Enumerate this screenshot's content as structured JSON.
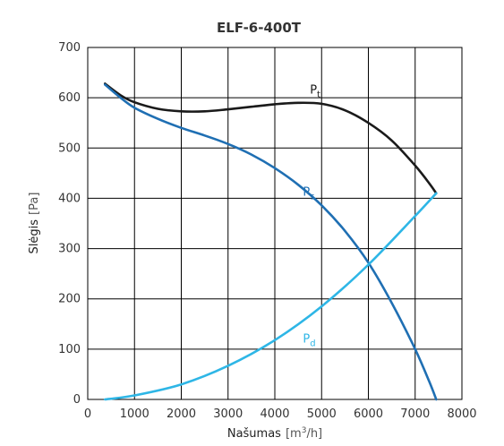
{
  "chart_data": {
    "type": "line",
    "title": "ELF-6-400T",
    "xlabel": "Našumas",
    "xlabel_unit_prefix": "[m",
    "xlabel_unit_sup": "3",
    "xlabel_unit_suffix": "/h]",
    "ylabel": "Slėgis",
    "ylabel_unit": "[Pa]",
    "xlim": [
      0,
      8000
    ],
    "ylim": [
      0,
      700
    ],
    "x_ticks": [
      0,
      1000,
      2000,
      3000,
      4000,
      5000,
      6000,
      7000,
      8000
    ],
    "y_ticks": [
      0,
      100,
      200,
      300,
      400,
      500,
      600,
      700
    ],
    "grid": true,
    "series": [
      {
        "id": "pt",
        "name": "P",
        "sub": "t",
        "color": "#1a1a1a",
        "x": [
          370,
          700,
          1000,
          1500,
          2000,
          2500,
          3000,
          3500,
          4000,
          4500,
          5000,
          5500,
          6000,
          6500,
          7000,
          7300,
          7450
        ],
        "y": [
          628,
          605,
          591,
          578,
          573,
          573,
          577,
          582,
          587,
          590,
          588,
          575,
          550,
          515,
          465,
          430,
          410
        ]
      },
      {
        "id": "ps",
        "name": "P",
        "sub": "s",
        "color": "#1f6fb3",
        "x": [
          370,
          700,
          1000,
          1500,
          2000,
          2500,
          3000,
          3500,
          4000,
          4500,
          5000,
          5500,
          6000,
          6500,
          7000,
          7300,
          7450
        ],
        "y": [
          626,
          600,
          580,
          558,
          540,
          525,
          508,
          487,
          460,
          427,
          386,
          335,
          272,
          192,
          100,
          36,
          0
        ]
      },
      {
        "id": "pd",
        "name": "P",
        "sub": "d",
        "color": "#2eb6e6",
        "x": [
          370,
          1000,
          2000,
          3000,
          4000,
          5000,
          6000,
          7000,
          7450
        ],
        "y": [
          0,
          8,
          30,
          67,
          118,
          185,
          268,
          365,
          410
        ]
      }
    ],
    "label_positions": {
      "pt": [
        4750,
        608
      ],
      "ps": [
        4600,
        405
      ],
      "pd": [
        4600,
        113
      ]
    }
  }
}
